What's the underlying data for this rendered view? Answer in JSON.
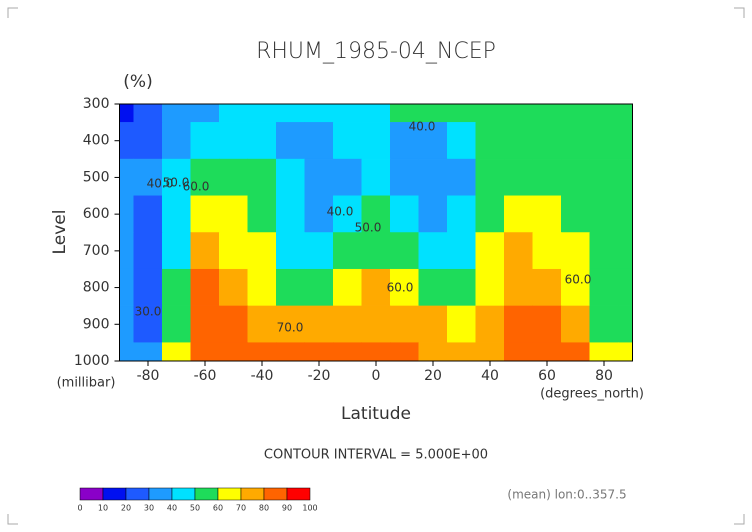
{
  "chart_data": {
    "type": "contour",
    "title": "RHUM_1985-04_NCEP",
    "units": "(%)",
    "ylabel": "Level",
    "yunit": "(millibar)",
    "xlabel": "Latitude",
    "xunit": "(degrees_north)",
    "footer": "CONTOUR INTERVAL = 5.000E+00",
    "note": "(mean) lon:0..357.5",
    "x": [
      -90,
      -80,
      -70,
      -60,
      -50,
      -40,
      -30,
      -20,
      -10,
      0,
      10,
      20,
      30,
      40,
      50,
      60,
      70,
      80,
      90
    ],
    "y": [
      300,
      400,
      500,
      600,
      700,
      800,
      900,
      1000
    ],
    "z": [
      [
        15,
        20,
        30,
        38,
        42,
        45,
        45,
        45,
        45,
        48,
        50,
        50,
        50,
        52,
        55,
        55,
        50,
        50,
        50
      ],
      [
        25,
        25,
        35,
        45,
        48,
        45,
        38,
        35,
        40,
        45,
        38,
        35,
        40,
        50,
        55,
        55,
        55,
        55,
        55
      ],
      [
        35,
        30,
        42,
        55,
        58,
        50,
        40,
        30,
        38,
        45,
        35,
        35,
        38,
        50,
        55,
        55,
        55,
        55,
        55
      ],
      [
        30,
        25,
        45,
        65,
        62,
        55,
        42,
        30,
        40,
        52,
        42,
        35,
        40,
        55,
        65,
        65,
        58,
        55,
        55
      ],
      [
        35,
        25,
        45,
        72,
        68,
        60,
        48,
        45,
        52,
        58,
        52,
        40,
        45,
        60,
        70,
        68,
        62,
        58,
        58
      ],
      [
        35,
        28,
        50,
        82,
        75,
        65,
        58,
        58,
        65,
        70,
        65,
        55,
        55,
        65,
        75,
        75,
        65,
        55,
        58
      ],
      [
        35,
        25,
        55,
        88,
        82,
        75,
        70,
        72,
        75,
        78,
        72,
        70,
        68,
        72,
        80,
        82,
        75,
        50,
        55
      ],
      [
        38,
        30,
        65,
        88,
        85,
        82,
        80,
        80,
        82,
        82,
        80,
        78,
        78,
        78,
        82,
        85,
        80,
        60,
        65
      ]
    ],
    "xlim": [
      -90,
      90
    ],
    "ylim": [
      300,
      1000
    ],
    "y_reversed": true,
    "xticks": [
      -80,
      -60,
      -40,
      -20,
      0,
      20,
      40,
      60,
      80
    ],
    "yticks": [
      300,
      400,
      500,
      600,
      700,
      800,
      900,
      1000
    ],
    "levels": [
      0,
      10,
      20,
      30,
      40,
      50,
      60,
      70,
      80,
      90,
      100
    ],
    "colors": [
      "#8a00c8",
      "#0010f0",
      "#1e5aff",
      "#1e9bff",
      "#00e1ff",
      "#1edc5a",
      "#ffff00",
      "#ffaa00",
      "#ff6400",
      "#ff0000"
    ],
    "annotations": [
      "40.0",
      "50.0",
      "60.0",
      "40.0",
      "50.0",
      "40.0",
      "60.0",
      "60.0",
      "30.0",
      "70.0"
    ]
  }
}
